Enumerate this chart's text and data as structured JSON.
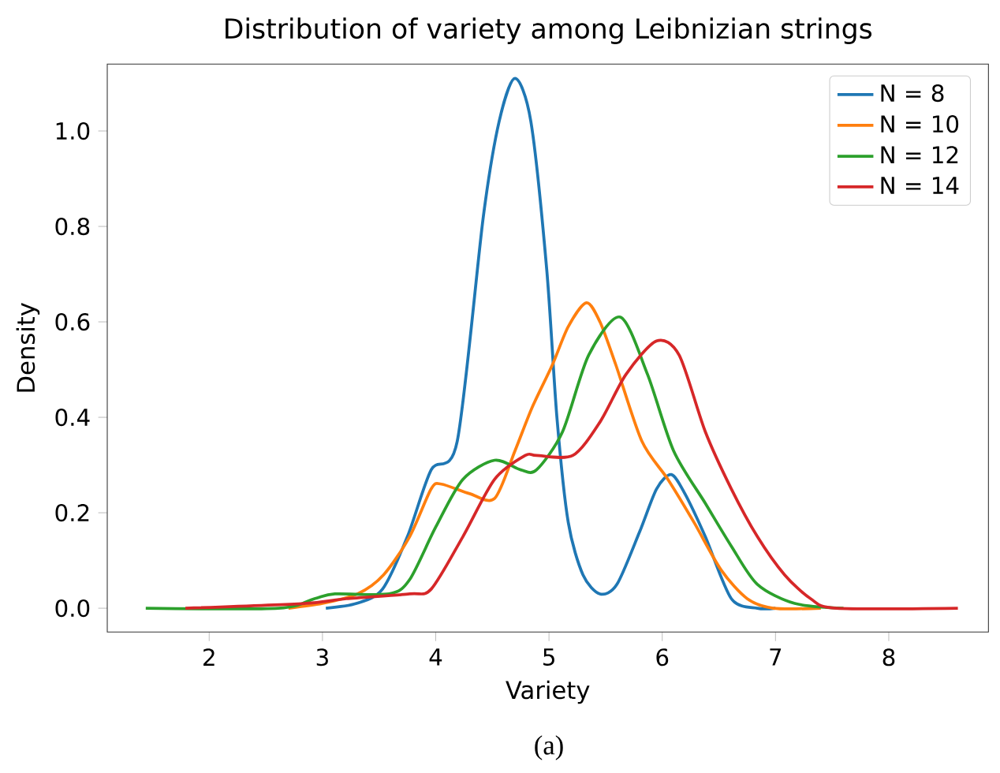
{
  "chart_data": {
    "type": "line",
    "title": "Distribution of variety among Leibnizian strings",
    "xlabel": "Variety",
    "ylabel": "Density",
    "annotations": [
      "(a)"
    ],
    "xlim": [
      1.1,
      8.88
    ],
    "ylim": [
      -0.05,
      1.14
    ],
    "xticks": [
      2,
      3,
      4,
      5,
      6,
      7,
      8
    ],
    "yticks": [
      {
        "value": 0,
        "label": "0.0"
      },
      {
        "value": 0.2,
        "label": "0.2"
      },
      {
        "value": 0.4,
        "label": "0.4"
      },
      {
        "value": 0.6,
        "label": "0.6"
      },
      {
        "value": 0.8,
        "label": "0.8"
      },
      {
        "value": 1.0,
        "label": "1.0"
      }
    ],
    "legend": "top right",
    "grid": false,
    "marker": "none",
    "line_style": "solid",
    "series": [
      {
        "name": "N = 8",
        "color": "#1f77b4",
        "x": [
          3.03,
          3.3,
          3.53,
          3.75,
          3.96,
          4.19,
          4.42,
          4.56,
          4.7,
          4.84,
          4.98,
          5.07,
          5.17,
          5.3,
          5.45,
          5.6,
          5.8,
          5.95,
          6.08,
          6.2,
          6.38,
          6.61,
          6.84,
          7.0
        ],
        "values": [
          0,
          0.01,
          0.04,
          0.15,
          0.29,
          0.35,
          0.82,
          1.02,
          1.11,
          1.02,
          0.71,
          0.4,
          0.18,
          0.07,
          0.03,
          0.05,
          0.16,
          0.25,
          0.28,
          0.24,
          0.15,
          0.02,
          0,
          0
        ]
      },
      {
        "name": "N = 10",
        "color": "#ff7f0e",
        "x": [
          2.7,
          3.0,
          3.31,
          3.54,
          3.77,
          3.96,
          4.05,
          4.3,
          4.52,
          4.7,
          4.85,
          5.03,
          5.17,
          5.33,
          5.45,
          5.59,
          5.82,
          6.05,
          6.28,
          6.52,
          6.75,
          6.98,
          7.4
        ],
        "values": [
          0,
          0.01,
          0.03,
          0.07,
          0.15,
          0.25,
          0.26,
          0.24,
          0.23,
          0.33,
          0.42,
          0.51,
          0.59,
          0.64,
          0.6,
          0.51,
          0.35,
          0.27,
          0.18,
          0.08,
          0.02,
          0,
          0
        ]
      },
      {
        "name": "N = 12",
        "color": "#2ca02c",
        "x": [
          1.44,
          2.61,
          2.93,
          3.11,
          3.59,
          3.77,
          4.0,
          4.24,
          4.52,
          4.75,
          4.89,
          5.12,
          5.35,
          5.63,
          5.87,
          6.1,
          6.38,
          6.61,
          6.84,
          7.17,
          7.6
        ],
        "values": [
          0,
          0,
          0.02,
          0.03,
          0.03,
          0.06,
          0.17,
          0.27,
          0.31,
          0.29,
          0.29,
          0.37,
          0.53,
          0.61,
          0.49,
          0.33,
          0.22,
          0.13,
          0.05,
          0.01,
          0
        ]
      },
      {
        "name": "N = 14",
        "color": "#d62728",
        "x": [
          1.79,
          2.84,
          3.21,
          3.77,
          3.96,
          4.24,
          4.52,
          4.79,
          4.89,
          5.21,
          5.45,
          5.68,
          5.95,
          6.15,
          6.38,
          6.61,
          6.84,
          7.08,
          7.31,
          7.54,
          8.61
        ],
        "values": [
          0,
          0.01,
          0.02,
          0.03,
          0.04,
          0.15,
          0.27,
          0.32,
          0.32,
          0.32,
          0.39,
          0.49,
          0.56,
          0.53,
          0.37,
          0.25,
          0.15,
          0.07,
          0.02,
          0,
          0
        ]
      }
    ]
  }
}
